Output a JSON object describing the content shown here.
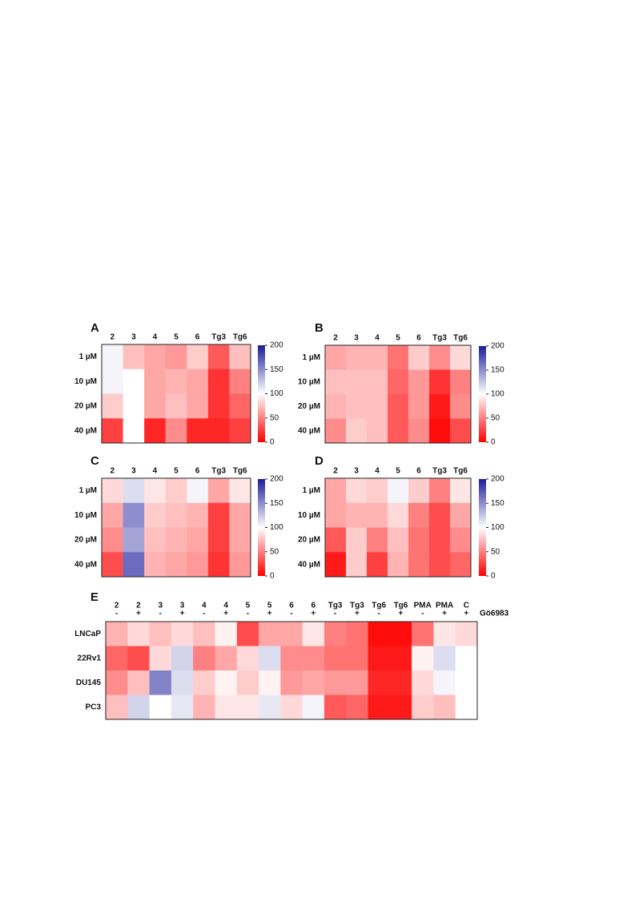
{
  "chart_data": [
    {
      "type": "heatmap",
      "panel": "A",
      "x_labels": [
        "2",
        "3",
        "4",
        "5",
        "6",
        "Tg3",
        "Tg6"
      ],
      "y_labels": [
        "1 µM",
        "10 µM",
        "20 µM",
        "40 µM"
      ],
      "values": [
        [
          105,
          75,
          65,
          60,
          80,
          35,
          75
        ],
        [
          105,
          100,
          65,
          70,
          65,
          20,
          50
        ],
        [
          80,
          100,
          65,
          75,
          65,
          20,
          40
        ],
        [
          25,
          100,
          15,
          55,
          15,
          15,
          25
        ]
      ],
      "clim": [
        0,
        200
      ],
      "colors": [
        "#ff0000",
        "#ffffff",
        "#1c1c9c"
      ],
      "cticks": [
        0,
        50,
        100,
        150,
        200
      ],
      "colorbar": true
    },
    {
      "type": "heatmap",
      "panel": "B",
      "x_labels": [
        "2",
        "3",
        "4",
        "5",
        "6",
        "Tg3",
        "Tg6"
      ],
      "y_labels": [
        "1 µM",
        "10 µM",
        "20 µM",
        "40 µM"
      ],
      "values": [
        [
          65,
          70,
          70,
          45,
          80,
          55,
          85
        ],
        [
          75,
          75,
          75,
          40,
          60,
          20,
          50
        ],
        [
          70,
          75,
          75,
          35,
          60,
          10,
          55
        ],
        [
          55,
          80,
          75,
          35,
          55,
          5,
          30
        ]
      ],
      "clim": [
        0,
        200
      ],
      "colors": [
        "#ff0000",
        "#ffffff",
        "#1c1c9c"
      ],
      "cticks": [
        0,
        50,
        100,
        150,
        200
      ],
      "colorbar": true
    },
    {
      "type": "heatmap",
      "panel": "C",
      "x_labels": [
        "2",
        "3",
        "4",
        "5",
        "6",
        "Tg3",
        "Tg6"
      ],
      "y_labels": [
        "1 µM",
        "10 µM",
        "20 µM",
        "40 µM"
      ],
      "values": [
        [
          85,
          115,
          90,
          80,
          105,
          65,
          90
        ],
        [
          65,
          150,
          80,
          75,
          70,
          25,
          65
        ],
        [
          55,
          140,
          75,
          70,
          65,
          25,
          65
        ],
        [
          30,
          165,
          70,
          65,
          60,
          20,
          60
        ]
      ],
      "clim": [
        0,
        200
      ],
      "colors": [
        "#ff0000",
        "#ffffff",
        "#1c1c9c"
      ],
      "cticks": [
        0,
        50,
        100,
        150,
        200
      ],
      "colorbar": true
    },
    {
      "type": "heatmap",
      "panel": "D",
      "x_labels": [
        "2",
        "3",
        "4",
        "5",
        "6",
        "Tg3",
        "Tg6"
      ],
      "y_labels": [
        "1 µM",
        "10 µM",
        "20 µM",
        "40 µM"
      ],
      "values": [
        [
          65,
          85,
          80,
          105,
          80,
          50,
          90
        ],
        [
          65,
          70,
          70,
          85,
          50,
          30,
          65
        ],
        [
          35,
          80,
          50,
          75,
          45,
          30,
          55
        ],
        [
          10,
          80,
          25,
          70,
          45,
          30,
          40
        ]
      ],
      "clim": [
        0,
        200
      ],
      "colors": [
        "#ff0000",
        "#ffffff",
        "#1c1c9c"
      ],
      "cticks": [
        0,
        50,
        100,
        150,
        200
      ],
      "colorbar": true
    },
    {
      "type": "heatmap",
      "panel": "E",
      "x_labels": [
        "2",
        "2",
        "3",
        "3",
        "4",
        "4",
        "5",
        "5",
        "6",
        "6",
        "Tg3",
        "Tg3",
        "Tg6",
        "Tg6",
        "PMA",
        "PMA",
        "C"
      ],
      "x_signs": [
        "-",
        "+",
        "-",
        "+",
        "-",
        "+",
        "-",
        "+",
        "-",
        "+",
        "-",
        "+",
        "-",
        "+",
        "-",
        "+",
        "+"
      ],
      "x_axis_label": "Gö6983",
      "y_labels": [
        "LNCaP",
        "22Rv1",
        "DU145",
        "PC3"
      ],
      "values": [
        [
          70,
          85,
          75,
          85,
          75,
          95,
          30,
          65,
          65,
          90,
          50,
          45,
          5,
          5,
          45,
          90,
          85
        ],
        [
          40,
          30,
          85,
          120,
          50,
          65,
          85,
          115,
          55,
          55,
          45,
          45,
          10,
          10,
          95,
          115,
          100
        ],
        [
          55,
          75,
          155,
          115,
          80,
          95,
          80,
          95,
          60,
          65,
          60,
          60,
          15,
          15,
          85,
          105,
          100
        ],
        [
          75,
          120,
          100,
          110,
          70,
          90,
          90,
          110,
          85,
          105,
          35,
          40,
          10,
          10,
          80,
          75,
          100
        ]
      ],
      "clim": [
        0,
        200
      ],
      "colors": [
        "#ff0000",
        "#ffffff",
        "#1c1c9c"
      ],
      "colorbar": false
    }
  ]
}
